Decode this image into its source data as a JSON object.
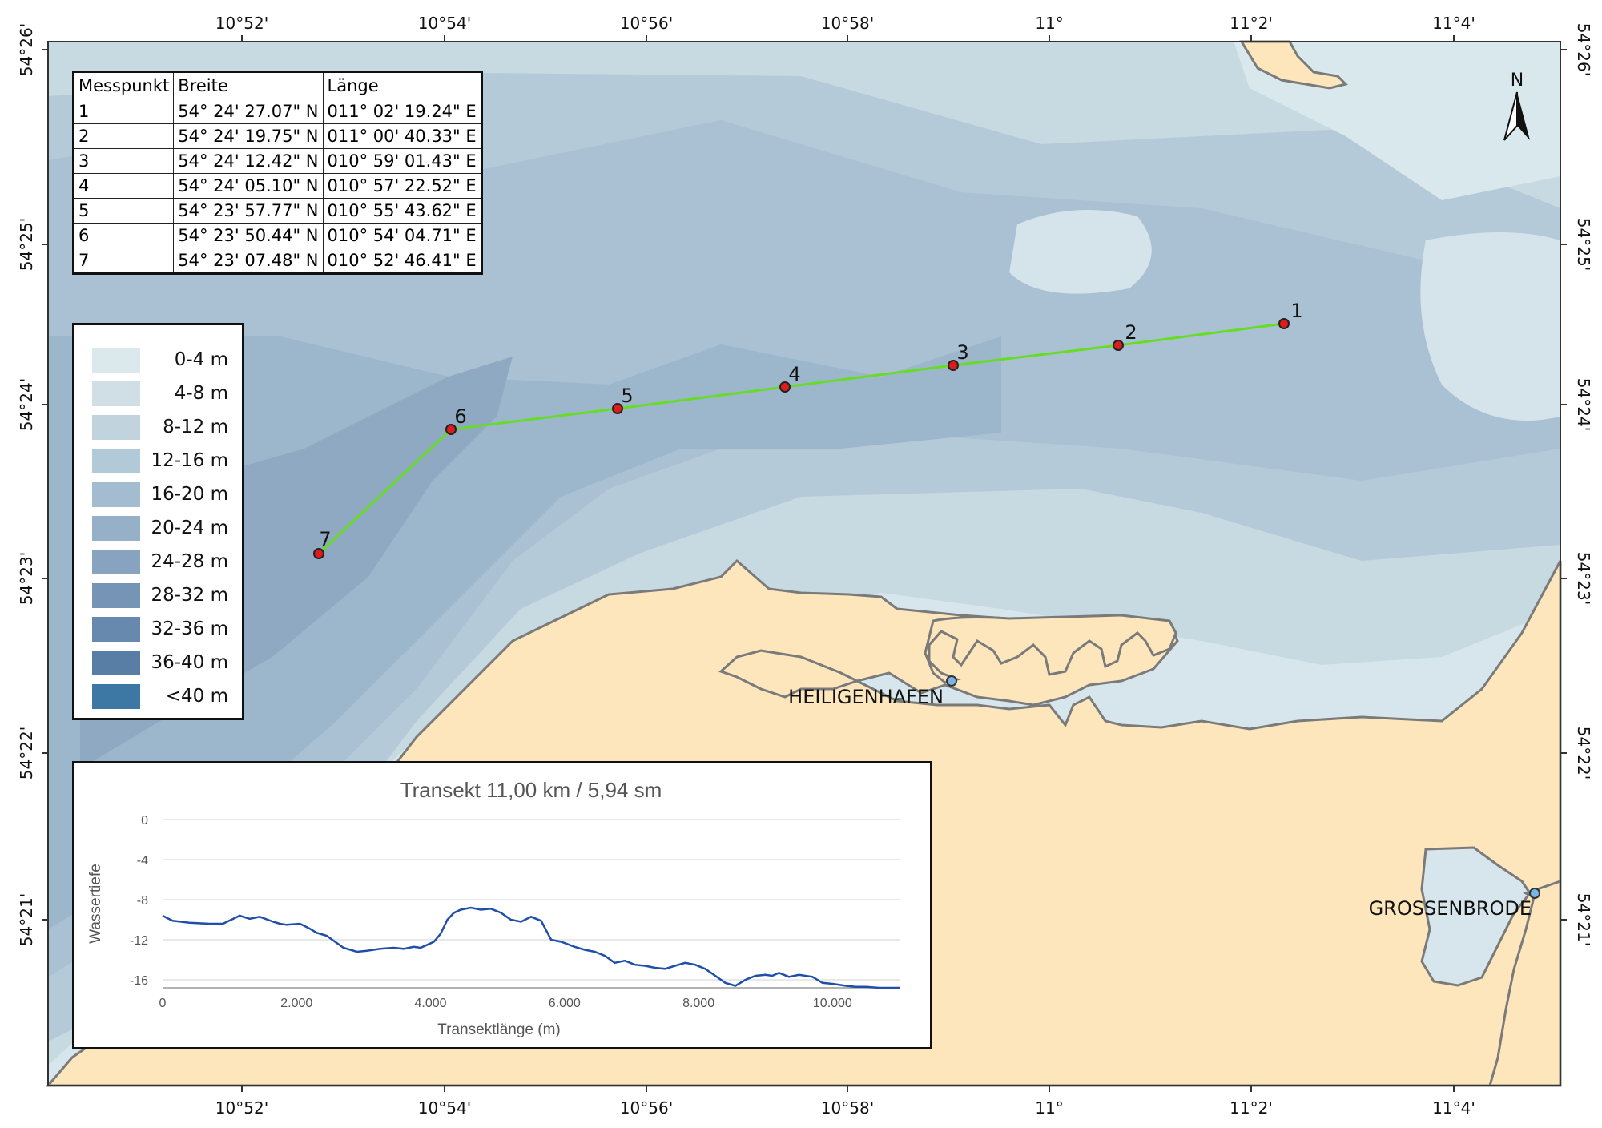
{
  "map": {
    "colors": {
      "land": "#fde6bc",
      "coast": "#7a7a7a",
      "transect": "#66dd22",
      "point_fill": "#e01b1b",
      "port_fill": "#79b4e4"
    },
    "lon_labels": [
      "10°52'",
      "10°54'",
      "10°56'",
      "10°58'",
      "11°",
      "11°2'",
      "11°4'"
    ],
    "lat_labels": [
      "54°26'",
      "54°25'",
      "54°24'",
      "54°23'",
      "54°22'",
      "54°21'"
    ],
    "north_label": "N",
    "places": [
      {
        "name": "HEILIGENHAFEN"
      },
      {
        "name": "GROSSENBRODE"
      }
    ],
    "points": [
      {
        "label": "1"
      },
      {
        "label": "2"
      },
      {
        "label": "3"
      },
      {
        "label": "4"
      },
      {
        "label": "5"
      },
      {
        "label": "6"
      },
      {
        "label": "7"
      }
    ]
  },
  "table": {
    "headers": [
      "Messpunkt",
      "Breite",
      "Länge"
    ],
    "rows": [
      [
        "1",
        "54° 24' 27.07\" N",
        "011° 02' 19.24\" E"
      ],
      [
        "2",
        "54° 24' 19.75\" N",
        "011° 00' 40.33\" E"
      ],
      [
        "3",
        "54° 24' 12.42\" N",
        "010° 59' 01.43\" E"
      ],
      [
        "4",
        "54° 24' 05.10\" N",
        "010° 57' 22.52\" E"
      ],
      [
        "5",
        "54° 23' 57.77\" N",
        "010° 55' 43.62\" E"
      ],
      [
        "6",
        "54° 23' 50.44\" N",
        "010° 54' 04.71\" E"
      ],
      [
        "7",
        "54° 23' 07.48\" N",
        "010° 52' 46.41\" E"
      ]
    ]
  },
  "legend": {
    "items": [
      {
        "label": "0-4 m",
        "color": "#dce9ec"
      },
      {
        "label": "4-8 m",
        "color": "#cfdfe5"
      },
      {
        "label": "8-12 m",
        "color": "#c1d4de"
      },
      {
        "label": "12-16 m",
        "color": "#b2c9d7"
      },
      {
        "label": "16-20 m",
        "color": "#a4bccf"
      },
      {
        "label": "20-24 m",
        "color": "#96b0c8"
      },
      {
        "label": "24-28 m",
        "color": "#87a3bf"
      },
      {
        "label": "28-32 m",
        "color": "#7695b6"
      },
      {
        "label": "32-36 m",
        "color": "#6789ad"
      },
      {
        "label": "36-40 m",
        "color": "#587ea6"
      },
      {
        "label": "<40 m",
        "color": "#3d77a3"
      }
    ]
  },
  "chart_data": {
    "type": "line",
    "title": "Transekt 11,00 km / 5,94 sm",
    "xlabel": "Transektlänge (m)",
    "ylabel": "Wassertiefe",
    "x_ticks": [
      "0",
      "2.000",
      "4.000",
      "6.000",
      "8.000",
      "10.000"
    ],
    "y_ticks": [
      "0",
      "-4",
      "-8",
      "-12",
      "-16"
    ],
    "xlim": [
      0,
      11000
    ],
    "ylim": [
      -16.8,
      0
    ],
    "grid": "horizontal",
    "color": "#1f4fa8",
    "x": [
      0,
      150,
      400,
      700,
      900,
      1150,
      1300,
      1450,
      1650,
      1750,
      1850,
      2050,
      2200,
      2300,
      2450,
      2700,
      2900,
      3050,
      3250,
      3450,
      3600,
      3750,
      3850,
      3950,
      4050,
      4150,
      4250,
      4350,
      4450,
      4600,
      4750,
      4900,
      5050,
      5200,
      5350,
      5500,
      5650,
      5800,
      5950,
      6150,
      6300,
      6450,
      6600,
      6750,
      6900,
      7050,
      7200,
      7350,
      7500,
      7650,
      7800,
      7950,
      8100,
      8250,
      8400,
      8550,
      8700,
      8850,
      9000,
      9100,
      9200,
      9350,
      9500,
      9700,
      9850,
      10000,
      10200,
      10350,
      10500,
      10700,
      10900,
      11000
    ],
    "y": [
      -9.6,
      -10.1,
      -10.3,
      -10.4,
      -10.4,
      -9.6,
      -9.9,
      -9.7,
      -10.2,
      -10.4,
      -10.5,
      -10.4,
      -10.9,
      -11.3,
      -11.6,
      -12.8,
      -13.2,
      -13.1,
      -12.9,
      -12.8,
      -12.9,
      -12.7,
      -12.8,
      -12.5,
      -12.2,
      -11.4,
      -10.0,
      -9.3,
      -9.0,
      -8.8,
      -9.0,
      -8.9,
      -9.3,
      -10.0,
      -10.2,
      -9.7,
      -10.1,
      -12.0,
      -12.2,
      -12.7,
      -13.0,
      -13.2,
      -13.6,
      -14.3,
      -14.1,
      -14.5,
      -14.6,
      -14.8,
      -14.9,
      -14.6,
      -14.3,
      -14.5,
      -14.9,
      -15.6,
      -16.3,
      -16.6,
      -16.0,
      -15.6,
      -15.5,
      -15.6,
      -15.3,
      -15.7,
      -15.5,
      -15.7,
      -16.3,
      -16.4,
      -16.6,
      -16.7,
      -16.7,
      -16.8,
      -16.8,
      -16.8
    ]
  }
}
